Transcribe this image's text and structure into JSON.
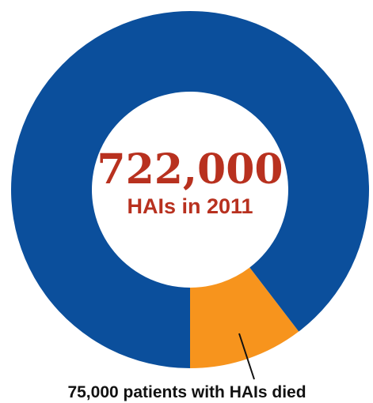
{
  "chart_data": {
    "type": "pie",
    "style": "donut",
    "center_value": "722,000",
    "center_label": "HAIs in 2011",
    "slices": [
      {
        "label": "75,000 patients with HAIs died",
        "value": 75000,
        "color": "#f7941d"
      },
      {
        "value": 647000,
        "color": "#0b4f9c"
      }
    ],
    "total": 722000,
    "start_angle": "bottom",
    "direction": "counterclockwise",
    "center_text_color": "#b8311f",
    "callout_line_color": "#111111",
    "callout_text_color": "#111111"
  }
}
